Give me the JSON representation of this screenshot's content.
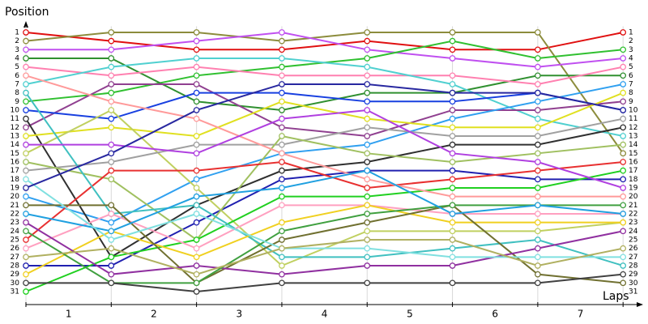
{
  "chart_data": {
    "type": "line",
    "y_axis_label": "Position",
    "x_axis_label": "Laps",
    "x": [
      0,
      1,
      2,
      3,
      4,
      5,
      6,
      7
    ],
    "xlim": [
      0,
      7.15
    ],
    "xticks": [
      {
        "value": 0.5,
        "label": "1"
      },
      {
        "value": 1.5,
        "label": "2"
      },
      {
        "value": 2.5,
        "label": "3"
      },
      {
        "value": 3.5,
        "label": "4"
      },
      {
        "value": 4.5,
        "label": "5"
      },
      {
        "value": 5.5,
        "label": "6"
      },
      {
        "value": 6.5,
        "label": "7"
      }
    ],
    "ylim": [
      32.5,
      0.3
    ],
    "yticks": [
      1,
      2,
      3,
      4,
      5,
      6,
      7,
      8,
      9,
      10,
      11,
      12,
      13,
      14,
      15,
      16,
      17,
      18,
      19,
      20,
      21,
      22,
      23,
      24,
      25,
      26,
      27,
      28,
      29,
      30,
      31
    ],
    "grid": true,
    "series": [
      {
        "color": "#e01010",
        "values": [
          1,
          2,
          3,
          3,
          2,
          3,
          3,
          1
        ]
      },
      {
        "color": "#8c8c3c",
        "values": [
          2,
          1,
          1,
          2,
          1,
          1,
          1,
          15
        ]
      },
      {
        "color": "#c050f0",
        "values": [
          3,
          3,
          2,
          1,
          3,
          4,
          5,
          4
        ]
      },
      {
        "color": "#30c030",
        "values": [
          9,
          8,
          6,
          5,
          4,
          2,
          4,
          3
        ]
      },
      {
        "color": "#309030",
        "values": [
          4,
          4,
          9,
          10,
          8,
          8,
          6,
          6
        ]
      },
      {
        "color": "#ff80b0",
        "values": [
          5,
          6,
          5,
          6,
          6,
          6,
          7,
          5
        ]
      },
      {
        "color": "#50d0d0",
        "values": [
          7,
          5,
          4,
          4,
          5,
          7,
          11,
          13
        ]
      },
      {
        "color": "#904090",
        "values": [
          12,
          7,
          7,
          12,
          13,
          10,
          10,
          9
        ]
      },
      {
        "color": "#30a0f0",
        "values": [
          20,
          23,
          18,
          15,
          14,
          11,
          9,
          7
        ]
      },
      {
        "color": "#1840e0",
        "values": [
          10,
          11,
          8,
          8,
          9,
          9,
          8,
          10
        ]
      },
      {
        "color": "#303030",
        "values": [
          11,
          27,
          21,
          17,
          16,
          14,
          14,
          12
        ]
      },
      {
        "color": "#2020b0",
        "values": [
          28,
          28,
          23,
          18,
          17,
          17,
          18,
          18
        ]
      },
      {
        "color": "#e0e020",
        "values": [
          13,
          12,
          13,
          9,
          11,
          12,
          12,
          8
        ]
      },
      {
        "color": "#c0d060",
        "values": [
          15,
          10,
          19,
          28,
          24,
          24,
          24,
          23
        ]
      },
      {
        "color": "#a0a0a0",
        "values": [
          17,
          16,
          14,
          14,
          12,
          13,
          13,
          11
        ]
      },
      {
        "color": "#a0c060",
        "values": [
          16,
          18,
          25,
          13,
          15,
          16,
          15,
          14
        ]
      },
      {
        "color": "#e83030",
        "values": [
          25,
          17,
          17,
          16,
          19,
          18,
          17,
          16
        ]
      },
      {
        "color": "#20d020",
        "values": [
          31,
          27,
          25,
          20,
          20,
          19,
          19,
          17
        ]
      },
      {
        "color": "#ff9a9a",
        "values": [
          6,
          9,
          11,
          15,
          18,
          20,
          20,
          20
        ]
      },
      {
        "color": "#40c0c0",
        "values": [
          8,
          22,
          21,
          27,
          27,
          26,
          25,
          28
        ]
      },
      {
        "color": "#ffa0c0",
        "values": [
          26,
          22,
          26,
          21,
          21,
          22,
          22,
          22
        ]
      },
      {
        "color": "#f0d020",
        "values": [
          29,
          24,
          27,
          23,
          21,
          23,
          23,
          23
        ]
      },
      {
        "color": "#707030",
        "values": [
          21,
          21,
          30,
          25,
          23,
          21,
          29,
          30
        ]
      },
      {
        "color": "#9030a0",
        "values": [
          23,
          29,
          28,
          29,
          28,
          28,
          26,
          24
        ]
      },
      {
        "color": "#40a040",
        "values": [
          24,
          30,
          30,
          24,
          22,
          21,
          21,
          21
        ]
      },
      {
        "color": "#20a0e0",
        "values": [
          22,
          24,
          20,
          19,
          17,
          22,
          21,
          22
        ]
      },
      {
        "color": "#80e0e0",
        "values": [
          18,
          25,
          22,
          26,
          26,
          27,
          27,
          27
        ]
      },
      {
        "color": "#b0b060",
        "values": [
          27,
          26,
          29,
          26,
          25,
          25,
          28,
          26
        ]
      },
      {
        "color": "#404040",
        "values": [
          30,
          30,
          31,
          30,
          30,
          30,
          30,
          29
        ]
      },
      {
        "color": "#b040e0",
        "values": [
          14,
          14,
          15,
          11,
          10,
          15,
          16,
          19
        ]
      },
      {
        "color": "#2828a0",
        "values": [
          19,
          15,
          10,
          7,
          7,
          8,
          8,
          10
        ]
      }
    ]
  }
}
